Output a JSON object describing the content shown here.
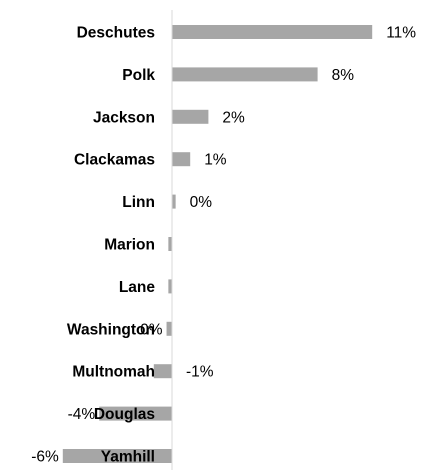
{
  "chart_data": {
    "type": "bar",
    "orientation": "horizontal",
    "title": "",
    "xlabel": "",
    "ylabel": "",
    "xlim": [
      -0.065,
      0.125
    ],
    "grid": false,
    "legend": "none",
    "bar_color": "#a6a6a6",
    "categories": [
      "Deschutes",
      "Polk",
      "Jackson",
      "Clackamas",
      "Linn",
      "Marion",
      "Lane",
      "Washington",
      "Multnomah",
      "Douglas",
      "Yamhill"
    ],
    "values": [
      0.11,
      0.08,
      0.02,
      0.01,
      0.002,
      -0.002,
      -0.002,
      -0.003,
      -0.01,
      -0.04,
      -0.06
    ],
    "data_labels": [
      "11%",
      "8%",
      "2%",
      "1%",
      "0%",
      "",
      "",
      "0%",
      "-1%",
      "-4%",
      "-6%"
    ]
  }
}
